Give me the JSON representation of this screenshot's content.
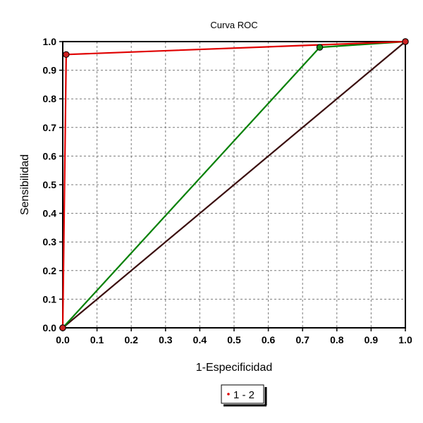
{
  "chart_data": {
    "type": "line",
    "title": "Curva ROC",
    "xlabel": "1-Especificidad",
    "ylabel": "Sensibilidad",
    "xlim": [
      0,
      1
    ],
    "ylim": [
      0,
      1
    ],
    "x_ticks": [
      "0.0",
      "0.1",
      "0.2",
      "0.3",
      "0.4",
      "0.5",
      "0.6",
      "0.7",
      "0.8",
      "0.9",
      "1.0"
    ],
    "y_ticks": [
      "0.0",
      "0.1",
      "0.2",
      "0.3",
      "0.4",
      "0.5",
      "0.6",
      "0.7",
      "0.8",
      "0.9",
      "1.0"
    ],
    "tick_step": 0.1,
    "grid": true,
    "legend_position": "bottom-center",
    "legend_label": "1 - 2",
    "legend_color": "#e00000",
    "series": [
      {
        "color": "#e00000",
        "marker_color": "#cc2222",
        "points": [
          [
            0.0,
            0.0
          ],
          [
            0.01,
            0.955
          ],
          [
            1.0,
            1.0
          ]
        ]
      },
      {
        "color": "#008000",
        "marker_color": "#1a8c1a",
        "points": [
          [
            0.0,
            0.0
          ],
          [
            0.75,
            0.98
          ],
          [
            1.0,
            1.0
          ]
        ]
      },
      {
        "color": "#3a0c0c",
        "marker_color": "",
        "points": [
          [
            0.0,
            0.0
          ],
          [
            1.0,
            1.0
          ]
        ]
      }
    ]
  }
}
